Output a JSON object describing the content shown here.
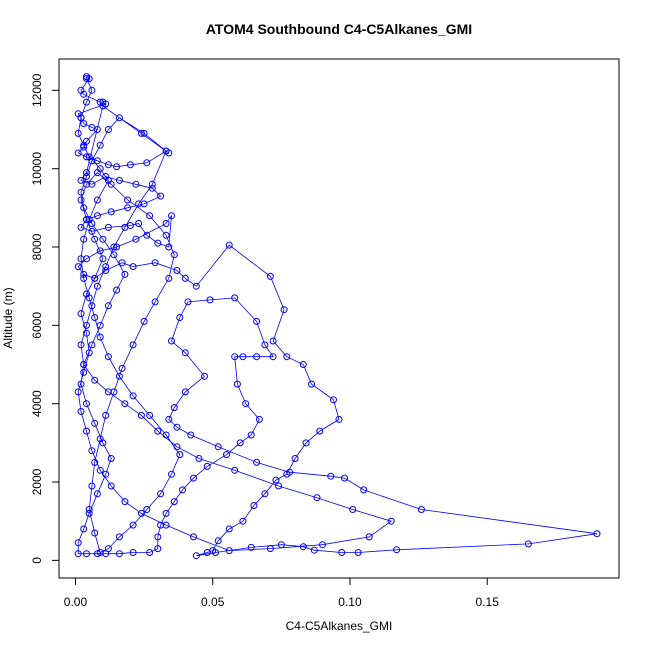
{
  "chart_data": {
    "type": "scatter",
    "title": "ATOM4 Southbound C4-C5Alkanes_GMI",
    "xlabel": "C4-C5Alkanes_GMI",
    "ylabel": "Altitude (m)",
    "xlim": [
      -0.006,
      0.198
    ],
    "ylim": [
      -450,
      12800
    ],
    "xticks": [
      0.0,
      0.05,
      0.1,
      0.15
    ],
    "xtick_labels": [
      "0.00",
      "0.05",
      "0.10",
      "0.15"
    ],
    "yticks": [
      0,
      2000,
      4000,
      6000,
      8000,
      10000,
      12000
    ],
    "ytick_labels": [
      "0",
      "2000",
      "4000",
      "6000",
      "8000",
      "10000",
      "12000"
    ],
    "marker": "open-circle",
    "connected": true,
    "grid": false,
    "legend": "none",
    "color": "#0000ff",
    "series": [
      {
        "name": "",
        "points": [
          [
            0.004,
            12350
          ],
          [
            0.005,
            12300
          ],
          [
            0.002,
            12000
          ],
          [
            0.003,
            11900
          ],
          [
            0.009,
            11700
          ],
          [
            0.01,
            11700
          ],
          [
            0.011,
            11650
          ],
          [
            0.001,
            11400
          ],
          [
            0.002,
            11300
          ],
          [
            0.003,
            11150
          ],
          [
            0.006,
            11050
          ],
          [
            0.008,
            11000
          ],
          [
            0.004,
            10700
          ],
          [
            0.003,
            10550
          ],
          [
            0.001,
            10400
          ],
          [
            0.004,
            10300
          ],
          [
            0.008,
            10200
          ],
          [
            0.012,
            10100
          ],
          [
            0.015,
            10050
          ],
          [
            0.02,
            10100
          ],
          [
            0.026,
            10150
          ],
          [
            0.033,
            10450
          ],
          [
            0.034,
            10400
          ],
          [
            0.024,
            10900
          ],
          [
            0.01,
            11600
          ],
          [
            0.004,
            9900
          ],
          [
            0.002,
            9700
          ],
          [
            0.006,
            9600
          ],
          [
            0.011,
            9800
          ],
          [
            0.016,
            9700
          ],
          [
            0.022,
            9600
          ],
          [
            0.028,
            9500
          ],
          [
            0.031,
            9300
          ],
          [
            0.025,
            9100
          ],
          [
            0.019,
            9000
          ],
          [
            0.013,
            8900
          ],
          [
            0.008,
            8800
          ],
          [
            0.004,
            8700
          ],
          [
            0.002,
            8500
          ],
          [
            0.006,
            8400
          ],
          [
            0.012,
            8500
          ],
          [
            0.02,
            8550
          ],
          [
            0.023,
            8600
          ],
          [
            0.026,
            8300
          ],
          [
            0.03,
            8100
          ],
          [
            0.034,
            8000
          ],
          [
            0.035,
            8800
          ],
          [
            0.033,
            8600
          ],
          [
            0.022,
            8200
          ],
          [
            0.015,
            8000
          ],
          [
            0.009,
            7900
          ],
          [
            0.004,
            7700
          ],
          [
            0.001,
            7500
          ],
          [
            0.003,
            7300
          ],
          [
            0.007,
            7200
          ],
          [
            0.011,
            7400
          ],
          [
            0.017,
            7600
          ],
          [
            0.021,
            7500
          ],
          [
            0.029,
            7600
          ],
          [
            0.037,
            7400
          ],
          [
            0.04,
            7200
          ],
          [
            0.044,
            7000
          ],
          [
            0.056,
            8050
          ],
          [
            0.071,
            7250
          ],
          [
            0.076,
            6400
          ],
          [
            0.072,
            5600
          ],
          [
            0.077,
            5200
          ],
          [
            0.083,
            5000
          ],
          [
            0.086,
            4500
          ],
          [
            0.094,
            4100
          ],
          [
            0.096,
            3600
          ],
          [
            0.089,
            3300
          ],
          [
            0.084,
            3000
          ],
          [
            0.08,
            2600
          ],
          [
            0.077,
            2200
          ],
          [
            0.073,
            2050
          ],
          [
            0.069,
            1700
          ],
          [
            0.065,
            1400
          ],
          [
            0.061,
            1000
          ],
          [
            0.056,
            800
          ],
          [
            0.052,
            500
          ],
          [
            0.05,
            250
          ],
          [
            0.048,
            200
          ],
          [
            0.044,
            120
          ],
          [
            0.051,
            200
          ],
          [
            0.064,
            330
          ],
          [
            0.075,
            400
          ],
          [
            0.083,
            350
          ],
          [
            0.087,
            260
          ],
          [
            0.097,
            200
          ],
          [
            0.103,
            200
          ],
          [
            0.117,
            270
          ],
          [
            0.165,
            420
          ],
          [
            0.19,
            680
          ],
          [
            0.126,
            1300
          ],
          [
            0.105,
            1800
          ],
          [
            0.098,
            2100
          ],
          [
            0.093,
            2150
          ],
          [
            0.078,
            2250
          ],
          [
            0.066,
            2500
          ],
          [
            0.052,
            2900
          ],
          [
            0.042,
            3200
          ],
          [
            0.037,
            3400
          ],
          [
            0.034,
            3600
          ],
          [
            0.036,
            3900
          ],
          [
            0.04,
            4300
          ],
          [
            0.047,
            4700
          ],
          [
            0.04,
            5300
          ],
          [
            0.035,
            5600
          ],
          [
            0.038,
            6200
          ],
          [
            0.041,
            6600
          ],
          [
            0.049,
            6650
          ],
          [
            0.058,
            6700
          ],
          [
            0.066,
            6100
          ],
          [
            0.069,
            5500
          ],
          [
            0.072,
            5200
          ],
          [
            0.066,
            5200
          ],
          [
            0.061,
            5200
          ],
          [
            0.058,
            5200
          ],
          [
            0.059,
            4500
          ],
          [
            0.062,
            4000
          ],
          [
            0.067,
            3600
          ],
          [
            0.064,
            3200
          ],
          [
            0.06,
            3000
          ],
          [
            0.055,
            2700
          ],
          [
            0.048,
            2400
          ],
          [
            0.043,
            2100
          ],
          [
            0.039,
            1800
          ],
          [
            0.036,
            1500
          ],
          [
            0.033,
            1200
          ],
          [
            0.031,
            900
          ],
          [
            0.03,
            600
          ],
          [
            0.03,
            300
          ],
          [
            0.027,
            200
          ],
          [
            0.021,
            200
          ],
          [
            0.016,
            170
          ],
          [
            0.011,
            170
          ],
          [
            0.008,
            170
          ],
          [
            0.004,
            170
          ],
          [
            0.001,
            170
          ],
          [
            0.001,
            450
          ],
          [
            0.003,
            800
          ],
          [
            0.005,
            1200
          ],
          [
            0.008,
            1700
          ],
          [
            0.011,
            2200
          ],
          [
            0.013,
            2600
          ],
          [
            0.01,
            3000
          ],
          [
            0.007,
            3500
          ],
          [
            0.004,
            4000
          ],
          [
            0.002,
            4500
          ],
          [
            0.003,
            5000
          ],
          [
            0.006,
            5500
          ],
          [
            0.009,
            6000
          ],
          [
            0.012,
            6500
          ],
          [
            0.015,
            6900
          ],
          [
            0.018,
            7300
          ],
          [
            0.014,
            7800
          ],
          [
            0.01,
            8200
          ],
          [
            0.006,
            8600
          ],
          [
            0.003,
            9000
          ],
          [
            0.002,
            9400
          ],
          [
            0.004,
            9800
          ],
          [
            0.006,
            10200
          ],
          [
            0.009,
            10600
          ],
          [
            0.012,
            11000
          ],
          [
            0.016,
            11300
          ],
          [
            0.025,
            10900
          ],
          [
            0.033,
            10450
          ],
          [
            0.028,
            9600
          ],
          [
            0.023,
            9100
          ],
          [
            0.018,
            8500
          ],
          [
            0.014,
            8000
          ],
          [
            0.011,
            7500
          ],
          [
            0.008,
            7000
          ],
          [
            0.006,
            6500
          ],
          [
            0.004,
            6000
          ],
          [
            0.002,
            5500
          ],
          [
            0.003,
            5000
          ],
          [
            0.007,
            4600
          ],
          [
            0.012,
            4300
          ],
          [
            0.018,
            4000
          ],
          [
            0.024,
            3700
          ],
          [
            0.03,
            3300
          ],
          [
            0.037,
            2900
          ],
          [
            0.045,
            2600
          ],
          [
            0.058,
            2300
          ],
          [
            0.074,
            1900
          ],
          [
            0.088,
            1600
          ],
          [
            0.101,
            1300
          ],
          [
            0.115,
            1000
          ],
          [
            0.107,
            600
          ],
          [
            0.09,
            400
          ],
          [
            0.071,
            300
          ],
          [
            0.056,
            250
          ],
          [
            0.043,
            600
          ],
          [
            0.033,
            900
          ],
          [
            0.024,
            1200
          ],
          [
            0.018,
            1500
          ],
          [
            0.013,
            1900
          ],
          [
            0.009,
            2300
          ],
          [
            0.006,
            2800
          ],
          [
            0.004,
            3300
          ],
          [
            0.002,
            3800
          ],
          [
            0.001,
            4300
          ],
          [
            0.003,
            4800
          ],
          [
            0.005,
            5300
          ],
          [
            0.004,
            5800
          ],
          [
            0.002,
            6300
          ],
          [
            0.004,
            6800
          ],
          [
            0.007,
            7200
          ],
          [
            0.01,
            7700
          ],
          [
            0.007,
            8200
          ],
          [
            0.004,
            8700
          ],
          [
            0.002,
            9200
          ],
          [
            0.004,
            9600
          ],
          [
            0.008,
            9900
          ],
          [
            0.013,
            9600
          ],
          [
            0.019,
            9200
          ],
          [
            0.027,
            8800
          ],
          [
            0.033,
            8300
          ],
          [
            0.036,
            7800
          ],
          [
            0.034,
            7200
          ],
          [
            0.029,
            6600
          ],
          [
            0.025,
            6100
          ],
          [
            0.021,
            5500
          ],
          [
            0.017,
            4900
          ],
          [
            0.014,
            4300
          ],
          [
            0.011,
            3700
          ],
          [
            0.009,
            3100
          ],
          [
            0.007,
            2500
          ],
          [
            0.006,
            1900
          ],
          [
            0.005,
            1300
          ],
          [
            0.007,
            700
          ],
          [
            0.009,
            200
          ],
          [
            0.012,
            300
          ],
          [
            0.016,
            600
          ],
          [
            0.021,
            900
          ],
          [
            0.026,
            1300
          ],
          [
            0.031,
            1700
          ],
          [
            0.035,
            2200
          ],
          [
            0.038,
            2700
          ],
          [
            0.033,
            3200
          ],
          [
            0.027,
            3700
          ],
          [
            0.021,
            4200
          ],
          [
            0.016,
            4700
          ],
          [
            0.012,
            5200
          ],
          [
            0.009,
            5700
          ],
          [
            0.007,
            6200
          ],
          [
            0.005,
            6700
          ],
          [
            0.003,
            7200
          ],
          [
            0.002,
            7700
          ],
          [
            0.003,
            8200
          ],
          [
            0.005,
            8700
          ],
          [
            0.008,
            9200
          ],
          [
            0.012,
            9700
          ],
          [
            0.009,
            10000
          ],
          [
            0.005,
            10300
          ],
          [
            0.003,
            10600
          ],
          [
            0.001,
            10900
          ],
          [
            0.002,
            11300
          ],
          [
            0.004,
            11700
          ],
          [
            0.006,
            12000
          ],
          [
            0.004,
            12300
          ]
        ]
      }
    ]
  }
}
